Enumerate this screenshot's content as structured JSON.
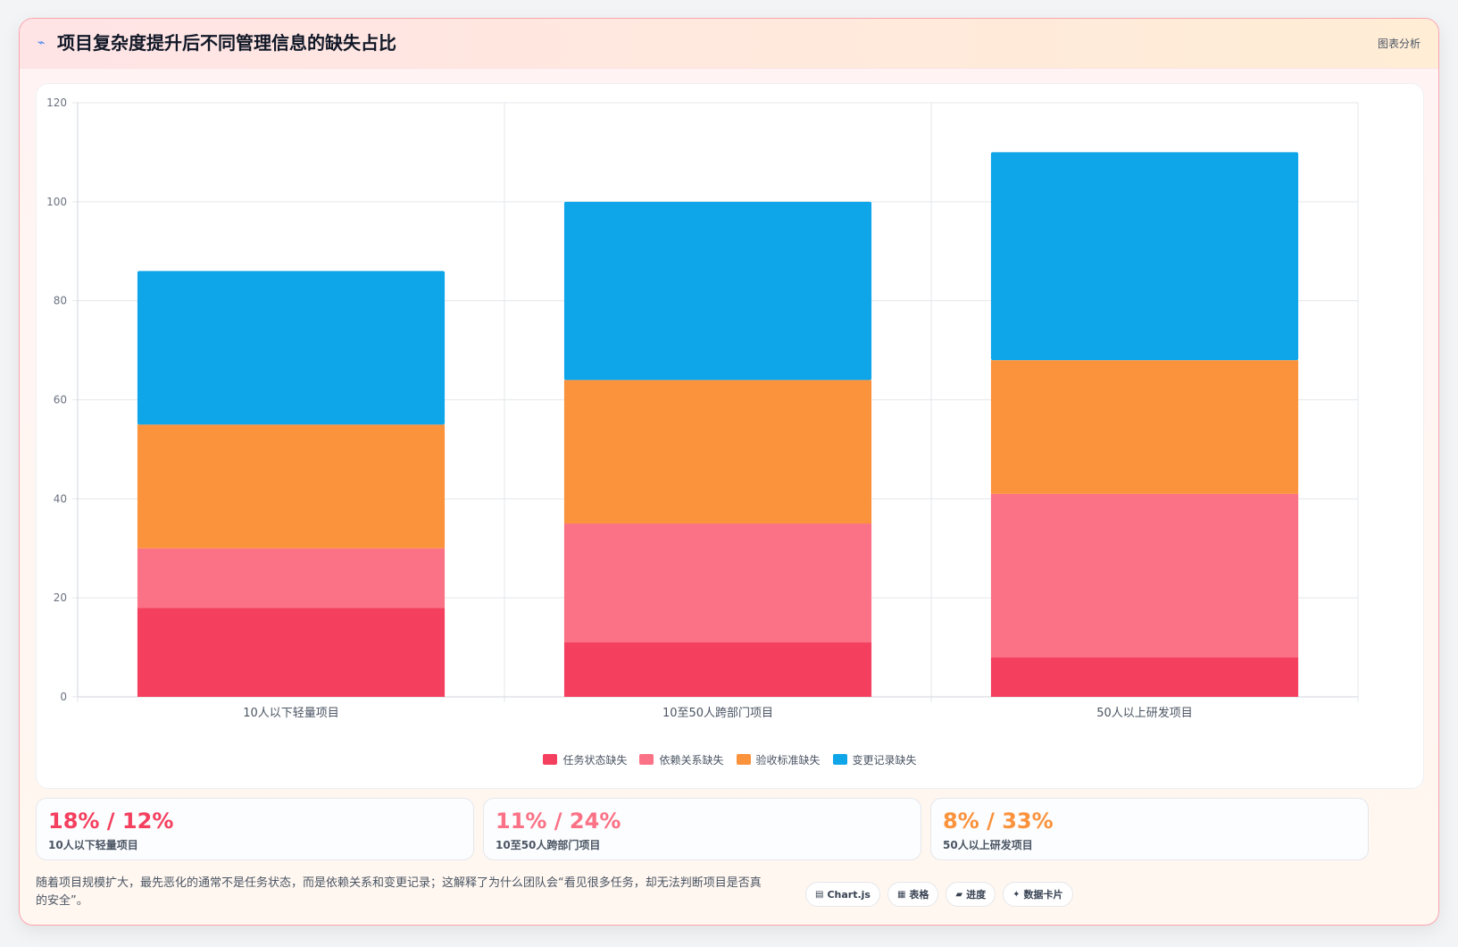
{
  "header": {
    "title": "项目复杂度提升后不同管理信息的缺失占比",
    "tag": "图表分析",
    "icon": "trend-icon"
  },
  "colors": {
    "task": "#f43f5e",
    "dependency": "#fb7185",
    "acceptance": "#fb923c",
    "change": "#0ea5e9"
  },
  "chart_data": {
    "type": "bar",
    "stacked": true,
    "title": "",
    "xlabel": "",
    "ylabel": "",
    "ylim": [
      0,
      120
    ],
    "yticks": [
      0,
      20,
      40,
      60,
      80,
      100,
      120
    ],
    "grid": true,
    "legend_position": "bottom",
    "categories": [
      "10人以下轻量项目",
      "10至50人跨部门项目",
      "50人以上研发项目"
    ],
    "series": [
      {
        "name": "任务状态缺失",
        "color": "#f43f5e",
        "values": [
          18,
          11,
          8
        ]
      },
      {
        "name": "依赖关系缺失",
        "color": "#fb7185",
        "values": [
          12,
          24,
          33
        ]
      },
      {
        "name": "验收标准缺失",
        "color": "#fb923c",
        "values": [
          25,
          29,
          27
        ]
      },
      {
        "name": "变更记录缺失",
        "color": "#0ea5e9",
        "values": [
          31,
          36,
          42
        ]
      }
    ]
  },
  "stats": [
    {
      "value": "18% / 12%",
      "label": "10人以下轻量项目",
      "color": "#f43f5e"
    },
    {
      "value": "11% / 24%",
      "label": "10至50人跨部门项目",
      "color": "#fb7185"
    },
    {
      "value": "8% / 33%",
      "label": "50人以上研发项目",
      "color": "#fb923c"
    }
  ],
  "footer": {
    "text": "随着项目规模扩大，最先恶化的通常不是任务状态，而是依赖关系和变更记录；这解释了为什么团队会“看见很多任务，却无法判断项目是否真的安全”。",
    "chips": [
      {
        "label": "Chart.js",
        "icon": "chart-icon",
        "glyph": "▤"
      },
      {
        "label": "表格",
        "icon": "table-icon",
        "glyph": "▦"
      },
      {
        "label": "进度",
        "icon": "progress-icon",
        "glyph": "▰"
      },
      {
        "label": "数据卡片",
        "icon": "sparkle-icon",
        "glyph": "✦"
      }
    ]
  }
}
